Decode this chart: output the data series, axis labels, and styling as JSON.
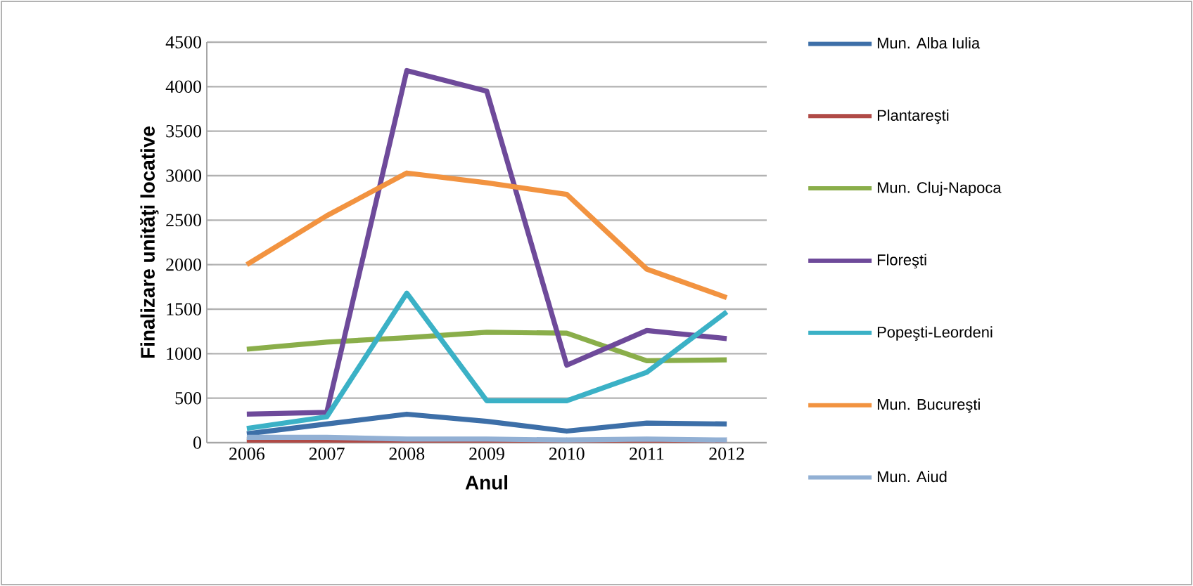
{
  "chart_data": {
    "type": "line",
    "xlabel": "Anul",
    "ylabel": "Finalizare unităţi locative",
    "categories": [
      "2006",
      "2007",
      "2008",
      "2009",
      "2010",
      "2011",
      "2012"
    ],
    "series": [
      {
        "name": "Mun. Alba Iulia",
        "color": "#3d6fa8",
        "values": [
          100,
          210,
          320,
          240,
          130,
          220,
          210
        ]
      },
      {
        "name": "Plantareşti",
        "color": "#b04a46",
        "values": [
          10,
          10,
          10,
          10,
          10,
          10,
          10
        ]
      },
      {
        "name": "Mun. Cluj-Napoca",
        "color": "#8aae4a",
        "values": [
          1050,
          1130,
          1180,
          1240,
          1230,
          920,
          930
        ]
      },
      {
        "name": "Floreşti",
        "color": "#6e4a9a",
        "values": [
          320,
          340,
          4180,
          3950,
          870,
          1260,
          1170
        ]
      },
      {
        "name": "Popeşti-Leordeni",
        "color": "#3bb1c6",
        "values": [
          160,
          290,
          1680,
          470,
          470,
          790,
          1470
        ]
      },
      {
        "name": "Mun. Bucureşti",
        "color": "#f29340",
        "values": [
          2000,
          2550,
          3030,
          2920,
          2790,
          1950,
          1630
        ]
      },
      {
        "name": "Mun. Aiud",
        "color": "#92b0d4",
        "values": [
          60,
          60,
          40,
          40,
          30,
          40,
          30
        ]
      }
    ],
    "ylim": [
      0,
      4500
    ],
    "yticks": [
      0,
      500,
      1000,
      1500,
      2000,
      2500,
      3000,
      3500,
      4000,
      4500
    ],
    "grid": "y",
    "legend": "right",
    "line_style": "solid"
  }
}
